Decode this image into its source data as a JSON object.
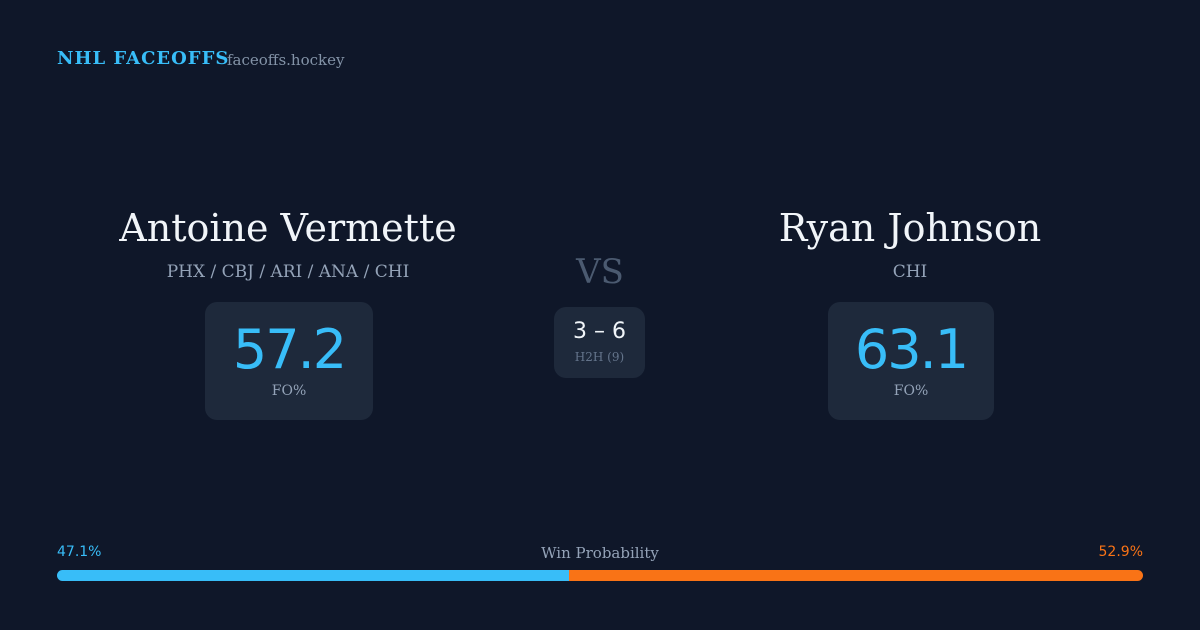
{
  "header": {
    "title": "NHL FACEOFFS",
    "site": "faceoffs.hockey"
  },
  "players": [
    {
      "name": "Antoine Vermette",
      "teams": "PHX / CBJ / ARI / ANA / CHI",
      "stat": "57.2",
      "stat_label": "FO%"
    },
    {
      "name": "Ryan Johnson",
      "teams": "CHI",
      "stat": "63.1",
      "stat_label": "FO%"
    }
  ],
  "versus": {
    "label": "VS",
    "score": "3 – 6",
    "caption": "H2H (9)"
  },
  "win_probability": {
    "label": "Win Probability",
    "left": {
      "value": 47.1,
      "label": "47.1%",
      "color": "#38bdf8"
    },
    "right": {
      "value": 52.9,
      "label": "52.9%",
      "color": "#f97316"
    }
  }
}
